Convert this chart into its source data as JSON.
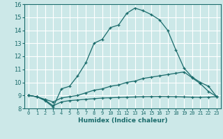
{
  "xlabel": "Humidex (Indice chaleur)",
  "ylabel": "",
  "background_color": "#cce8e8",
  "grid_color": "#ffffff",
  "line_color": "#1a6b6b",
  "xlim": [
    -0.5,
    23.5
  ],
  "ylim": [
    8,
    16
  ],
  "xticks": [
    0,
    1,
    2,
    3,
    4,
    5,
    6,
    7,
    8,
    9,
    10,
    11,
    12,
    13,
    14,
    15,
    16,
    17,
    18,
    19,
    20,
    21,
    22,
    23
  ],
  "yticks": [
    8,
    9,
    10,
    11,
    12,
    13,
    14,
    15,
    16
  ],
  "series": [
    {
      "x": [
        0,
        1,
        2,
        3,
        4,
        5,
        6,
        7,
        8,
        9,
        10,
        11,
        12,
        13,
        14,
        15,
        16,
        17,
        18,
        19,
        20,
        21,
        22,
        23
      ],
      "y": [
        9.0,
        8.9,
        8.6,
        8.1,
        9.5,
        9.7,
        10.5,
        11.5,
        13.0,
        13.3,
        14.2,
        14.4,
        15.3,
        15.7,
        15.5,
        15.2,
        14.8,
        14.0,
        12.5,
        11.1,
        10.4,
        10.0,
        9.7,
        8.9
      ]
    },
    {
      "x": [
        0,
        1,
        2,
        3,
        4,
        5,
        6,
        7,
        8,
        9,
        10,
        11,
        12,
        13,
        14,
        15,
        16,
        17,
        18,
        19,
        20,
        21,
        22,
        23
      ],
      "y": [
        9.0,
        8.9,
        8.7,
        8.5,
        8.8,
        8.9,
        9.0,
        9.2,
        9.4,
        9.5,
        9.7,
        9.8,
        10.0,
        10.1,
        10.3,
        10.4,
        10.5,
        10.6,
        10.7,
        10.8,
        10.35,
        9.9,
        9.3,
        8.9
      ]
    },
    {
      "x": [
        0,
        1,
        2,
        3,
        4,
        5,
        6,
        7,
        8,
        9,
        10,
        11,
        12,
        13,
        14,
        15,
        16,
        17,
        18,
        19,
        20,
        21,
        22,
        23
      ],
      "y": [
        9.0,
        8.9,
        8.65,
        8.2,
        8.5,
        8.6,
        8.65,
        8.7,
        8.75,
        8.8,
        8.82,
        8.84,
        8.86,
        8.88,
        8.9,
        8.91,
        8.92,
        8.91,
        8.9,
        8.88,
        8.86,
        8.85,
        8.87,
        8.9
      ]
    }
  ]
}
